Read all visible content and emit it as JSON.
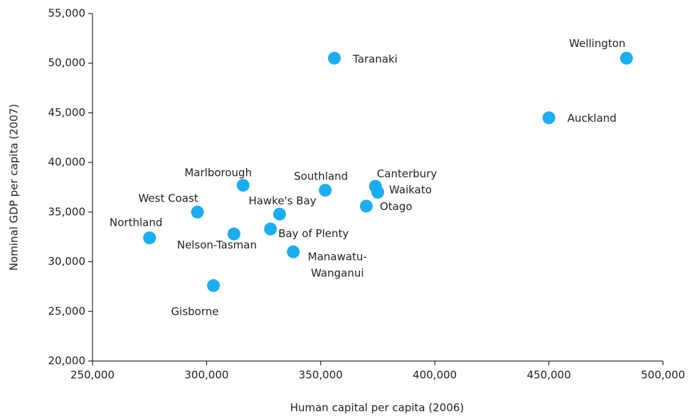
{
  "chart_data": {
    "type": "scatter",
    "xlabel": "Human capital per capita (2006)",
    "ylabel": "Nominal GDP per capita (2007)",
    "xlim": [
      250000,
      500000
    ],
    "ylim": [
      20000,
      55000
    ],
    "xticks": [
      {
        "value": 250000,
        "label": "250,000"
      },
      {
        "value": 300000,
        "label": "300,000"
      },
      {
        "value": 350000,
        "label": "350,000"
      },
      {
        "value": 400000,
        "label": "400,000"
      },
      {
        "value": 450000,
        "label": "450,000"
      },
      {
        "value": 500000,
        "label": "500,000"
      }
    ],
    "yticks": [
      {
        "value": 20000,
        "label": "20,000"
      },
      {
        "value": 25000,
        "label": "25,000"
      },
      {
        "value": 30000,
        "label": "30,000"
      },
      {
        "value": 35000,
        "label": "35,000"
      },
      {
        "value": 40000,
        "label": "40,000"
      },
      {
        "value": 45000,
        "label": "45,000"
      },
      {
        "value": 50000,
        "label": "50,000"
      },
      {
        "value": 55000,
        "label": "55,000"
      }
    ],
    "grid": false,
    "color": "#1aaef0",
    "labels": [
      "Wellington",
      "Taranaki",
      "Auckland",
      "Marlborough",
      "Southland",
      "Canterbury",
      "Waikato",
      "Otago",
      "West Coast",
      "Hawke's Bay",
      "Bay of Plenty",
      "Nelson-Tasman",
      "Northland",
      "Manawatu-\nWanganui",
      "Gisborne"
    ],
    "x": [
      484000,
      356000,
      450000,
      316000,
      352000,
      374000,
      375000,
      370000,
      296000,
      332000,
      328000,
      312000,
      275000,
      338000,
      303000
    ],
    "y": [
      50500,
      50500,
      44500,
      37700,
      37200,
      37600,
      37000,
      35600,
      35000,
      34800,
      33300,
      32800,
      32400,
      31000,
      27600
    ]
  }
}
